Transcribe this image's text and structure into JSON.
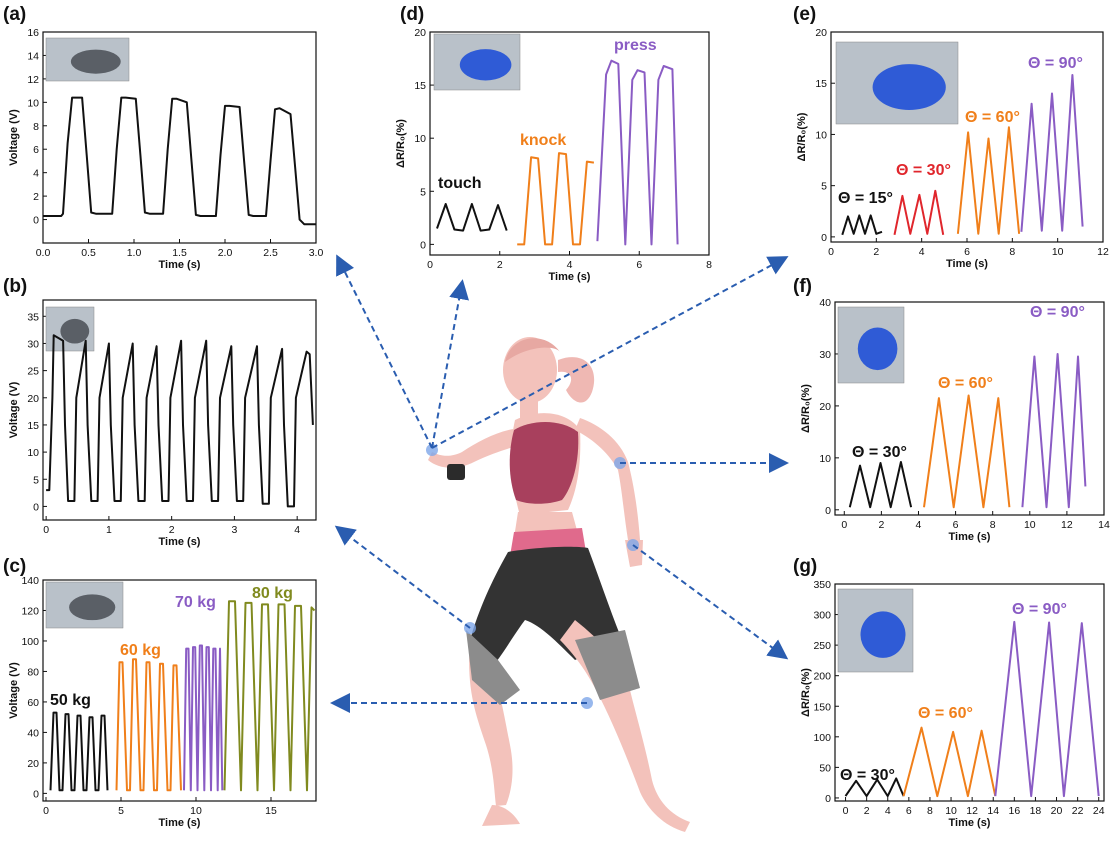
{
  "figure": {
    "background": "#ffffff",
    "arrow_color": "#2a5db0"
  },
  "colors": {
    "black": "#111111",
    "orange": "#f07f1a",
    "purple": "#8a5cc4",
    "red": "#e0262c",
    "olive": "#808a1f"
  },
  "chart_data": [
    {
      "id": "a",
      "panel_label": "(a)",
      "type": "line",
      "xlabel": "Time (s)",
      "ylabel": "Voltage (V)",
      "xlim": [
        0,
        3.0
      ],
      "ylim": [
        -2,
        16
      ],
      "xticks": [
        "0.0",
        "0.5",
        "1.0",
        "1.5",
        "2.0",
        "2.5",
        "3.0"
      ],
      "yticks": [
        "0",
        "2",
        "4",
        "6",
        "8",
        "10",
        "12",
        "14",
        "16"
      ],
      "inset": "finger-touching-phone-photo",
      "series": [
        {
          "color": "black",
          "label": "",
          "x": [
            0,
            0.2,
            0.22,
            0.27,
            0.32,
            0.43,
            0.48,
            0.53,
            0.58,
            0.76,
            0.81,
            0.86,
            0.91,
            1.02,
            1.07,
            1.12,
            1.17,
            1.32,
            1.37,
            1.42,
            1.47,
            1.58,
            1.63,
            1.68,
            1.73,
            1.9,
            1.95,
            2.0,
            2.05,
            2.16,
            2.21,
            2.26,
            2.31,
            2.45,
            2.5,
            2.55,
            2.6,
            2.72,
            2.77,
            2.82,
            2.87,
            3.0
          ],
          "y": [
            0.3,
            0.3,
            0.5,
            6.5,
            10.4,
            10.4,
            5.5,
            0.6,
            0.5,
            0.5,
            6,
            10.4,
            10.4,
            10.3,
            5.5,
            0.6,
            0.5,
            0.5,
            6,
            10.3,
            10.3,
            10,
            5.2,
            0.4,
            0.3,
            0.3,
            5.5,
            9.7,
            9.7,
            9.6,
            5,
            0.4,
            0.3,
            0.3,
            5,
            9.4,
            9.5,
            9,
            4.5,
            0,
            -0.4,
            -0.4
          ]
        }
      ]
    },
    {
      "id": "b",
      "panel_label": "(b)",
      "type": "line",
      "xlabel": "Time (s)",
      "ylabel": "Voltage (V)",
      "xlim": [
        -0.05,
        4.3
      ],
      "ylim": [
        -2.5,
        38
      ],
      "xticks": [
        "0",
        "1",
        "2",
        "3",
        "4"
      ],
      "yticks": [
        "0",
        "5",
        "10",
        "15",
        "20",
        "25",
        "30",
        "35"
      ],
      "inset": "knee-bend-photo",
      "series": [
        {
          "color": "black",
          "label": "",
          "x": [
            0,
            0.05,
            0.1,
            0.12,
            0.27,
            0.3,
            0.35,
            0.45,
            0.48,
            0.63,
            0.66,
            0.72,
            0.82,
            0.85,
            1.0,
            1.03,
            1.09,
            1.19,
            1.22,
            1.38,
            1.41,
            1.47,
            1.57,
            1.6,
            1.76,
            1.79,
            1.85,
            1.95,
            1.98,
            2.15,
            2.18,
            2.24,
            2.34,
            2.37,
            2.55,
            2.58,
            2.64,
            2.74,
            2.77,
            2.95,
            2.98,
            3.04,
            3.14,
            3.17,
            3.36,
            3.39,
            3.45,
            3.55,
            3.58,
            3.76,
            3.79,
            3.85,
            3.95,
            3.98,
            4.15,
            4.2,
            4.25
          ],
          "y": [
            3,
            3,
            20,
            31.5,
            30.5,
            15,
            1,
            1,
            20,
            30.5,
            15,
            1,
            1,
            20,
            30,
            15,
            1,
            1,
            20,
            30,
            15,
            1,
            1,
            20,
            29.5,
            15,
            1,
            1,
            20,
            30.5,
            15,
            1,
            1,
            20,
            30.5,
            15,
            1,
            1,
            20,
            29.5,
            15,
            1,
            1,
            20,
            29.5,
            15,
            0.5,
            0.5,
            20,
            29,
            15,
            0,
            0,
            20,
            28.5,
            28,
            15
          ]
        }
      ]
    },
    {
      "id": "c",
      "panel_label": "(c)",
      "type": "line",
      "xlabel": "Time (s)",
      "ylabel": "Voltage (V)",
      "xlim": [
        -0.2,
        18
      ],
      "ylim": [
        -5,
        140
      ],
      "xticks": [
        "0",
        "5",
        "10",
        "15"
      ],
      "yticks": [
        "0",
        "20",
        "40",
        "60",
        "80",
        "100",
        "120",
        "140"
      ],
      "inset": "feet-on-floor-photo",
      "series": [
        {
          "color": "black",
          "label": "50 kg",
          "x": [
            0.3,
            0.5,
            0.7,
            0.9,
            1.1,
            1.3,
            1.5,
            1.7,
            1.9,
            2.1,
            2.3,
            2.5,
            2.7,
            2.9,
            3.1,
            3.3,
            3.5,
            3.7,
            3.9,
            4.1
          ],
          "y": [
            2,
            53,
            53,
            2,
            2,
            52,
            52,
            2,
            2,
            51,
            51,
            2,
            2,
            50,
            50,
            2,
            2,
            51,
            51,
            2
          ]
        },
        {
          "color": "orange",
          "label": "60 kg",
          "x": [
            4.7,
            4.9,
            5.1,
            5.4,
            5.6,
            5.8,
            6.0,
            6.3,
            6.5,
            6.7,
            6.9,
            7.2,
            7.4,
            7.6,
            7.8,
            8.1,
            8.3,
            8.5,
            8.7,
            9.0
          ],
          "y": [
            2,
            86,
            86,
            2,
            2,
            88,
            88,
            2,
            2,
            86,
            86,
            2,
            2,
            85,
            85,
            2,
            2,
            84,
            84,
            2
          ]
        },
        {
          "color": "purple",
          "label": "70 kg",
          "x": [
            9.2,
            9.35,
            9.5,
            9.65,
            9.8,
            9.95,
            10.1,
            10.25,
            10.4,
            10.55,
            10.7,
            10.85,
            11.0,
            11.15,
            11.3,
            11.45,
            11.6,
            11.75
          ],
          "y": [
            2,
            95,
            95,
            2,
            96,
            96,
            2,
            97,
            97,
            2,
            96,
            96,
            2,
            95,
            95,
            2,
            95,
            2
          ]
        },
        {
          "color": "olive",
          "label": "80 kg",
          "x": [
            11.9,
            12.2,
            12.6,
            13.0,
            13.3,
            13.7,
            14.1,
            14.4,
            14.8,
            15.2,
            15.5,
            15.9,
            16.3,
            16.6,
            17.0,
            17.4,
            17.7,
            17.9
          ],
          "y": [
            2,
            126,
            126,
            2,
            125,
            125,
            2,
            124,
            124,
            2,
            124,
            124,
            2,
            123,
            123,
            2,
            122,
            120
          ]
        }
      ]
    },
    {
      "id": "d",
      "panel_label": "(d)",
      "type": "line",
      "xlabel": "Time (s)",
      "ylabel": "ΔR/R₀(%)",
      "xlim": [
        0,
        8
      ],
      "ylim": [
        -1,
        20
      ],
      "xticks": [
        "0",
        "2",
        "4",
        "6",
        "8"
      ],
      "yticks": [
        "0",
        "5",
        "10",
        "15",
        "20"
      ],
      "inset": "gloved-finger-pressing-photo",
      "series": [
        {
          "color": "black",
          "label": "touch",
          "x": [
            0.2,
            0.45,
            0.7,
            0.95,
            1.2,
            1.45,
            1.7,
            1.95,
            2.2
          ],
          "y": [
            1.5,
            3.8,
            1.4,
            1.3,
            3.8,
            1.3,
            1.4,
            3.7,
            1.3
          ]
        },
        {
          "color": "orange",
          "label": "knock",
          "x": [
            2.5,
            2.7,
            2.9,
            3.1,
            3.3,
            3.5,
            3.7,
            3.9,
            4.1,
            4.3,
            4.5,
            4.7
          ],
          "y": [
            0,
            0,
            8.2,
            8.1,
            0,
            0,
            8.6,
            8.5,
            0,
            0,
            7.8,
            7.7
          ]
        },
        {
          "color": "purple",
          "label": "press",
          "x": [
            4.8,
            5.05,
            5.2,
            5.4,
            5.6,
            5.8,
            5.95,
            6.15,
            6.35,
            6.55,
            6.7,
            6.95,
            7.1
          ],
          "y": [
            0.3,
            16,
            17.3,
            17,
            0,
            15.5,
            16.4,
            16.2,
            0,
            15.5,
            16.8,
            16.5,
            0
          ]
        }
      ]
    },
    {
      "id": "e",
      "panel_label": "(e)",
      "type": "line",
      "xlabel": "Time (s)",
      "ylabel": "ΔR/R₀(%)",
      "xlim": [
        0,
        12
      ],
      "ylim": [
        -0.5,
        20
      ],
      "xticks": [
        "0",
        "2",
        "4",
        "6",
        "8",
        "10",
        "12"
      ],
      "yticks": [
        "0",
        "5",
        "10",
        "15",
        "20"
      ],
      "inset": "finger-bend-photo",
      "series": [
        {
          "color": "black",
          "label": "Θ = 15°",
          "x": [
            0.5,
            0.75,
            1.0,
            1.25,
            1.5,
            1.75,
            2.0,
            2.25
          ],
          "y": [
            0.2,
            2,
            0.3,
            2.1,
            0.3,
            2.1,
            0.3,
            0.5
          ]
        },
        {
          "color": "red",
          "label": "Θ = 30°",
          "x": [
            2.8,
            3.15,
            3.5,
            3.9,
            4.25,
            4.6,
            4.95
          ],
          "y": [
            0.2,
            4,
            0.3,
            4.1,
            0.3,
            4.5,
            0.2
          ]
        },
        {
          "color": "orange",
          "label": "Θ = 60°",
          "x": [
            5.6,
            6.05,
            6.5,
            6.95,
            7.4,
            7.85,
            8.3
          ],
          "y": [
            0.3,
            10.2,
            0.3,
            9.6,
            0.3,
            10.7,
            0.3
          ]
        },
        {
          "color": "purple",
          "label": "Θ = 90°",
          "x": [
            8.4,
            8.85,
            9.3,
            9.75,
            10.2,
            10.65,
            11.1
          ],
          "y": [
            0.5,
            13,
            0.6,
            14,
            0.6,
            15.8,
            1
          ]
        }
      ]
    },
    {
      "id": "f",
      "panel_label": "(f)",
      "type": "line",
      "xlabel": "Time (s)",
      "ylabel": "ΔR/R₀(%)",
      "xlim": [
        -0.5,
        14
      ],
      "ylim": [
        -1,
        40
      ],
      "xticks": [
        "0",
        "2",
        "4",
        "6",
        "8",
        "10",
        "12",
        "14"
      ],
      "yticks": [
        "0",
        "10",
        "20",
        "30",
        "40"
      ],
      "inset": "elbow-bend-photo",
      "series": [
        {
          "color": "black",
          "label": "Θ = 30°",
          "x": [
            0.3,
            0.85,
            1.4,
            1.95,
            2.5,
            3.05,
            3.6
          ],
          "y": [
            0.5,
            8.5,
            0.5,
            9,
            0.5,
            9.2,
            0.5
          ]
        },
        {
          "color": "orange",
          "label": "Θ = 60°",
          "x": [
            4.3,
            5.1,
            5.9,
            6.7,
            7.5,
            8.3,
            8.9
          ],
          "y": [
            0.5,
            21.5,
            0.5,
            22,
            0.5,
            21.5,
            0.5
          ]
        },
        {
          "color": "purple",
          "label": "Θ = 90°",
          "x": [
            9.6,
            10.25,
            10.9,
            11.5,
            12.1,
            12.6,
            13.0
          ],
          "y": [
            0.5,
            29.5,
            0.5,
            30,
            0.5,
            29.5,
            4.5
          ]
        }
      ]
    },
    {
      "id": "g",
      "panel_label": "(g)",
      "type": "line",
      "xlabel": "Time (s)",
      "ylabel": "ΔR/R₀(%)",
      "xlim": [
        -1,
        24.5
      ],
      "ylim": [
        -5,
        350
      ],
      "xticks": [
        "0",
        "2",
        "4",
        "6",
        "8",
        "10",
        "12",
        "14",
        "16",
        "18",
        "20",
        "22",
        "24"
      ],
      "yticks": [
        "0",
        "50",
        "100",
        "150",
        "200",
        "250",
        "300",
        "350"
      ],
      "inset": "knee-brace-photo",
      "series": [
        {
          "color": "black",
          "label": "Θ = 30°",
          "x": [
            0,
            1.0,
            2.0,
            3.0,
            4.0,
            4.8,
            5.5
          ],
          "y": [
            3,
            28,
            3,
            30,
            3,
            32,
            3
          ]
        },
        {
          "color": "orange",
          "label": "Θ = 60°",
          "x": [
            5.5,
            7.2,
            8.7,
            10.2,
            11.6,
            12.9,
            14.2
          ],
          "y": [
            3,
            115,
            3,
            108,
            3,
            110,
            3
          ]
        },
        {
          "color": "purple",
          "label": "Θ = 90°",
          "x": [
            14.2,
            16.0,
            17.6,
            19.3,
            20.7,
            22.4,
            24.0
          ],
          "y": [
            3,
            288,
            3,
            287,
            3,
            286,
            3
          ]
        }
      ]
    }
  ]
}
